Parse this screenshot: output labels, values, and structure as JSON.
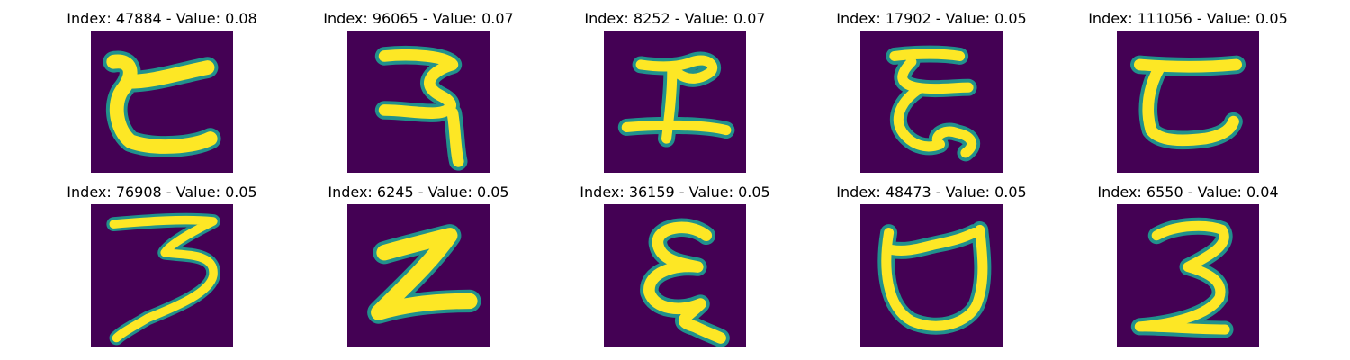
{
  "colors": {
    "background": "#440154",
    "edge": "#21918c",
    "stroke": "#fde725"
  },
  "panels": [
    {
      "title": "Index: 47884 - Value: 0.08"
    },
    {
      "title": "Index: 96065 - Value: 0.07"
    },
    {
      "title": "Index: 8252 - Value: 0.07"
    },
    {
      "title": "Index: 17902 - Value: 0.05"
    },
    {
      "title": "Index: 111056 - Value: 0.05"
    },
    {
      "title": "Index: 76908 - Value: 0.05"
    },
    {
      "title": "Index: 6245 - Value: 0.05"
    },
    {
      "title": "Index: 36159 - Value: 0.05"
    },
    {
      "title": "Index: 48473 - Value: 0.05"
    },
    {
      "title": "Index: 6550 - Value: 0.04"
    }
  ]
}
